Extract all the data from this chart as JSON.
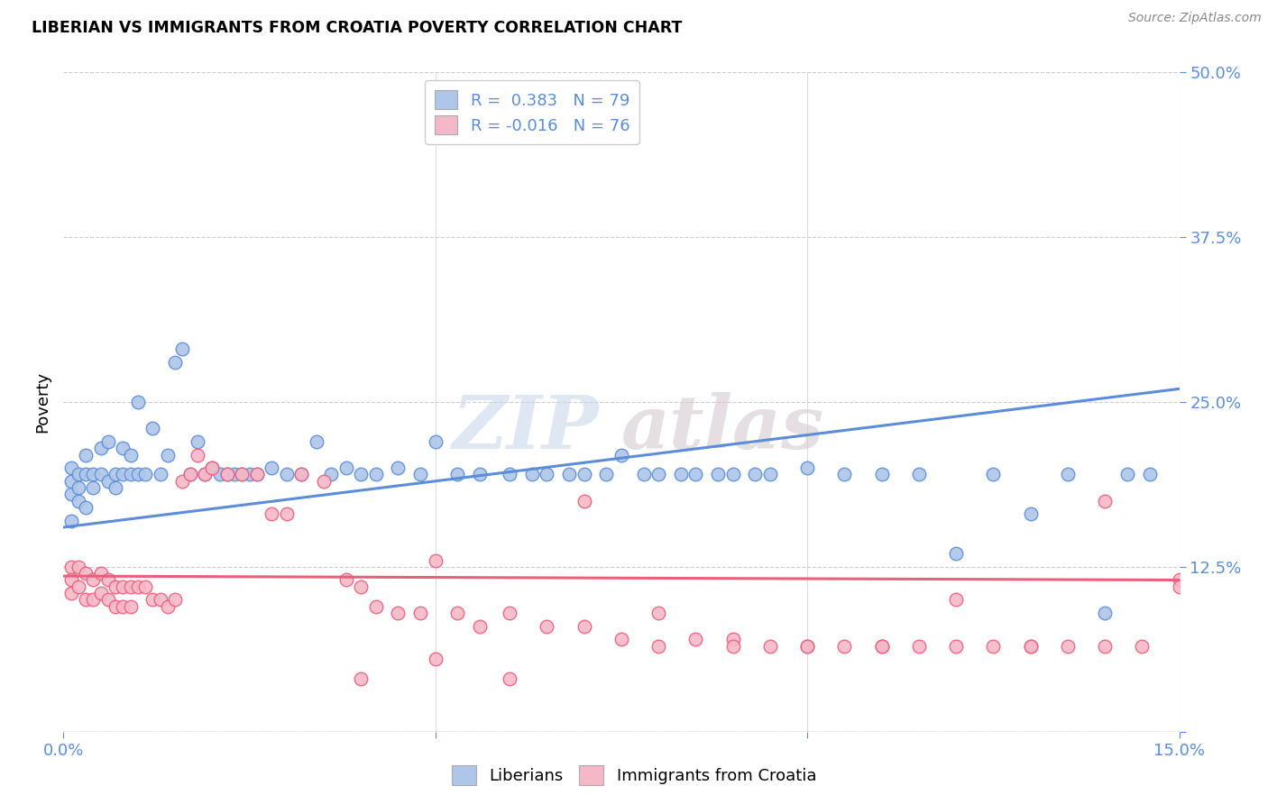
{
  "title": "LIBERIAN VS IMMIGRANTS FROM CROATIA POVERTY CORRELATION CHART",
  "source": "Source: ZipAtlas.com",
  "ylabel": "Poverty",
  "xlim": [
    0.0,
    0.15
  ],
  "ylim": [
    0.0,
    0.5
  ],
  "xticks": [
    0.0,
    0.05,
    0.1,
    0.15
  ],
  "xticklabels": [
    "0.0%",
    "",
    "",
    "15.0%"
  ],
  "yticks": [
    0.125,
    0.25,
    0.375,
    0.5
  ],
  "yticklabels": [
    "12.5%",
    "25.0%",
    "37.5%",
    "50.0%"
  ],
  "liberian_R": 0.383,
  "liberian_N": 79,
  "croatia_R": -0.016,
  "croatia_N": 76,
  "blue_color": "#aec6e8",
  "blue_line_color": "#5b8dd9",
  "pink_color": "#f5b8c8",
  "pink_line_color": "#e8607a",
  "watermark_zip": "ZIP",
  "watermark_atlas": "atlas",
  "liberian_x": [
    0.001,
    0.001,
    0.001,
    0.001,
    0.002,
    0.002,
    0.002,
    0.003,
    0.003,
    0.003,
    0.004,
    0.004,
    0.005,
    0.005,
    0.006,
    0.006,
    0.007,
    0.007,
    0.008,
    0.008,
    0.009,
    0.009,
    0.01,
    0.01,
    0.011,
    0.012,
    0.013,
    0.014,
    0.015,
    0.016,
    0.017,
    0.018,
    0.019,
    0.02,
    0.021,
    0.022,
    0.023,
    0.024,
    0.025,
    0.026,
    0.028,
    0.03,
    0.032,
    0.034,
    0.036,
    0.038,
    0.04,
    0.042,
    0.045,
    0.048,
    0.05,
    0.053,
    0.056,
    0.06,
    0.063,
    0.065,
    0.068,
    0.07,
    0.073,
    0.075,
    0.078,
    0.08,
    0.083,
    0.085,
    0.088,
    0.09,
    0.093,
    0.095,
    0.1,
    0.105,
    0.11,
    0.115,
    0.12,
    0.125,
    0.13,
    0.135,
    0.14,
    0.143,
    0.146
  ],
  "liberian_y": [
    0.18,
    0.2,
    0.16,
    0.19,
    0.195,
    0.175,
    0.185,
    0.21,
    0.17,
    0.195,
    0.185,
    0.195,
    0.195,
    0.215,
    0.19,
    0.22,
    0.185,
    0.195,
    0.195,
    0.215,
    0.195,
    0.21,
    0.195,
    0.25,
    0.195,
    0.23,
    0.195,
    0.21,
    0.28,
    0.29,
    0.195,
    0.22,
    0.195,
    0.2,
    0.195,
    0.195,
    0.195,
    0.195,
    0.195,
    0.195,
    0.2,
    0.195,
    0.195,
    0.22,
    0.195,
    0.2,
    0.195,
    0.195,
    0.2,
    0.195,
    0.22,
    0.195,
    0.195,
    0.195,
    0.195,
    0.195,
    0.195,
    0.195,
    0.195,
    0.21,
    0.195,
    0.195,
    0.195,
    0.195,
    0.195,
    0.195,
    0.195,
    0.195,
    0.2,
    0.195,
    0.195,
    0.195,
    0.135,
    0.195,
    0.165,
    0.195,
    0.09,
    0.195,
    0.195
  ],
  "croatia_x": [
    0.001,
    0.001,
    0.001,
    0.002,
    0.002,
    0.003,
    0.003,
    0.004,
    0.004,
    0.005,
    0.005,
    0.006,
    0.006,
    0.007,
    0.007,
    0.008,
    0.008,
    0.009,
    0.009,
    0.01,
    0.011,
    0.012,
    0.013,
    0.014,
    0.015,
    0.016,
    0.017,
    0.018,
    0.019,
    0.02,
    0.022,
    0.024,
    0.026,
    0.028,
    0.03,
    0.032,
    0.035,
    0.038,
    0.04,
    0.042,
    0.045,
    0.048,
    0.05,
    0.053,
    0.056,
    0.06,
    0.065,
    0.07,
    0.075,
    0.08,
    0.085,
    0.09,
    0.095,
    0.1,
    0.105,
    0.11,
    0.115,
    0.12,
    0.125,
    0.13,
    0.135,
    0.14,
    0.145,
    0.15,
    0.07,
    0.08,
    0.09,
    0.1,
    0.11,
    0.12,
    0.13,
    0.14,
    0.15,
    0.06,
    0.05,
    0.04
  ],
  "croatia_y": [
    0.125,
    0.115,
    0.105,
    0.125,
    0.11,
    0.12,
    0.1,
    0.115,
    0.1,
    0.12,
    0.105,
    0.115,
    0.1,
    0.11,
    0.095,
    0.11,
    0.095,
    0.11,
    0.095,
    0.11,
    0.11,
    0.1,
    0.1,
    0.095,
    0.1,
    0.19,
    0.195,
    0.21,
    0.195,
    0.2,
    0.195,
    0.195,
    0.195,
    0.165,
    0.165,
    0.195,
    0.19,
    0.115,
    0.11,
    0.095,
    0.09,
    0.09,
    0.13,
    0.09,
    0.08,
    0.09,
    0.08,
    0.08,
    0.07,
    0.09,
    0.07,
    0.07,
    0.065,
    0.065,
    0.065,
    0.065,
    0.065,
    0.1,
    0.065,
    0.065,
    0.065,
    0.065,
    0.065,
    0.115,
    0.175,
    0.065,
    0.065,
    0.065,
    0.065,
    0.065,
    0.065,
    0.175,
    0.11,
    0.04,
    0.055,
    0.04
  ]
}
